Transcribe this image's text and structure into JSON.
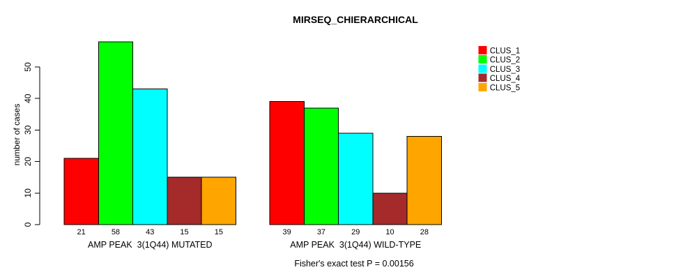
{
  "chart_data": {
    "type": "bar",
    "title": "MIRSEQ_CHIERARCHICAL",
    "ylabel": "number of cases",
    "xlabel": "",
    "ylim": [
      0,
      58
    ],
    "yticks": [
      0,
      10,
      20,
      30,
      40,
      50
    ],
    "grid": false,
    "legend_position": "top-right",
    "series": [
      {
        "name": "CLUS_1",
        "color": "#FF0000"
      },
      {
        "name": "CLUS_2",
        "color": "#00FF00"
      },
      {
        "name": "CLUS_3",
        "color": "#00FFFF"
      },
      {
        "name": "CLUS_4",
        "color": "#A52A2A"
      },
      {
        "name": "CLUS_5",
        "color": "#FFA500"
      }
    ],
    "groups": [
      {
        "label": "AMP PEAK  3(1Q44) MUTATED",
        "values": [
          21,
          58,
          43,
          15,
          15
        ]
      },
      {
        "label": "AMP PEAK  3(1Q44) WILD-TYPE",
        "values": [
          39,
          37,
          29,
          10,
          28
        ]
      }
    ],
    "bar_value_labels_shown": true,
    "annotation": "Fisher's exact test P = 0.00156"
  }
}
